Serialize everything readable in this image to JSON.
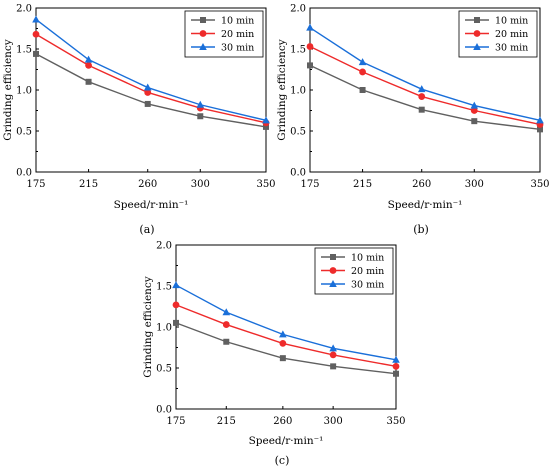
{
  "chart_data": [
    {
      "type": "line",
      "panel_label": "(a)",
      "xlabel": "Speed/r·min⁻¹",
      "ylabel": "Grinding efficiency",
      "x": [
        175,
        215,
        260,
        300,
        350
      ],
      "x_ticks": [
        "175",
        "215",
        "260",
        "300",
        "350"
      ],
      "ylim": [
        0,
        2.0
      ],
      "y_ticks": [
        "0.0",
        "0.5",
        "1.0",
        "1.5",
        "2.0"
      ],
      "legend_position": "top-right",
      "grid": false,
      "series": [
        {
          "name": "10 min",
          "color": "#606060",
          "marker": "square",
          "values": [
            1.44,
            1.1,
            0.83,
            0.68,
            0.55
          ]
        },
        {
          "name": "20 min",
          "color": "#ee2b2b",
          "marker": "circle",
          "values": [
            1.68,
            1.3,
            0.97,
            0.78,
            0.6
          ]
        },
        {
          "name": "30 min",
          "color": "#1a6fd9",
          "marker": "triangle",
          "values": [
            1.86,
            1.37,
            1.03,
            0.82,
            0.63
          ]
        }
      ]
    },
    {
      "type": "line",
      "panel_label": "(b)",
      "xlabel": "Speed/r·min⁻¹",
      "ylabel": "Grinding efficiency",
      "x": [
        175,
        215,
        260,
        300,
        350
      ],
      "x_ticks": [
        "175",
        "215",
        "260",
        "300",
        "350"
      ],
      "ylim": [
        0,
        2.0
      ],
      "y_ticks": [
        "0.0",
        "0.5",
        "1.0",
        "1.5",
        "2.0"
      ],
      "legend_position": "top-right",
      "grid": false,
      "series": [
        {
          "name": "10 min",
          "color": "#606060",
          "marker": "square",
          "values": [
            1.3,
            1.0,
            0.76,
            0.62,
            0.52
          ]
        },
        {
          "name": "20 min",
          "color": "#ee2b2b",
          "marker": "circle",
          "values": [
            1.53,
            1.22,
            0.92,
            0.75,
            0.58
          ]
        },
        {
          "name": "30 min",
          "color": "#1a6fd9",
          "marker": "triangle",
          "values": [
            1.76,
            1.34,
            1.01,
            0.81,
            0.63
          ]
        }
      ]
    },
    {
      "type": "line",
      "panel_label": "(c)",
      "xlabel": "Speed/r·min⁻¹",
      "ylabel": "Grinding efficiency",
      "x": [
        175,
        215,
        260,
        300,
        350
      ],
      "x_ticks": [
        "175",
        "215",
        "260",
        "300",
        "350"
      ],
      "ylim": [
        0,
        2.0
      ],
      "y_ticks": [
        "0.0",
        "0.5",
        "1.0",
        "1.5",
        "2.0"
      ],
      "legend_position": "top-right",
      "grid": false,
      "series": [
        {
          "name": "10 min",
          "color": "#606060",
          "marker": "square",
          "values": [
            1.05,
            0.82,
            0.62,
            0.52,
            0.43
          ]
        },
        {
          "name": "20 min",
          "color": "#ee2b2b",
          "marker": "circle",
          "values": [
            1.27,
            1.03,
            0.8,
            0.66,
            0.52
          ]
        },
        {
          "name": "30 min",
          "color": "#1a6fd9",
          "marker": "triangle",
          "values": [
            1.51,
            1.18,
            0.91,
            0.74,
            0.6
          ]
        }
      ]
    }
  ]
}
